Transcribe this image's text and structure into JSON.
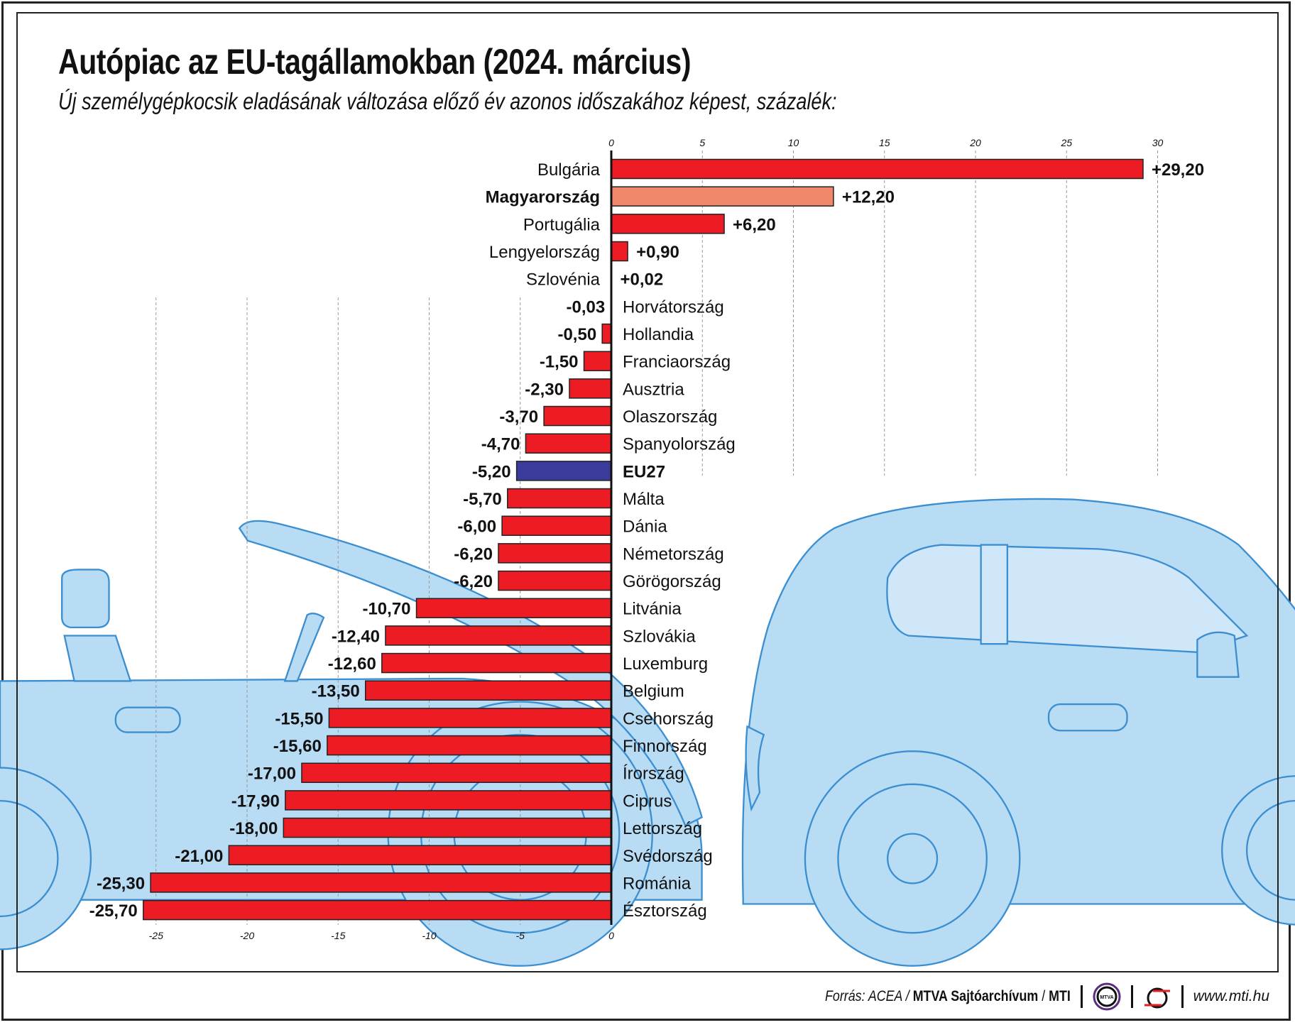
{
  "title": "Autópiac az EU-tagállamokban (2024. március)",
  "subtitle": "Új személygépkocsik eladásának változása előző év azonos időszakához képest, százalék:",
  "footer": {
    "source_prefix": "Forrás: ACEA / ",
    "source_bold": "MTVA Sajtóarchívum",
    "source_sep": " / ",
    "source_mti": "MTI",
    "mtva_logo_text": "MTVA",
    "website": "www.mti.hu"
  },
  "colors": {
    "bar": "#ed1c24",
    "hungary": "#f0896b",
    "eu": "#3b3b9b",
    "car_fill": "#b9dcf5",
    "car_stroke": "#3b8fd1"
  },
  "chart_data": {
    "type": "bar",
    "orientation": "horizontal",
    "title": "Autópiac az EU-tagállamokban (2024. március)",
    "xlabel": "",
    "ylabel": "",
    "xlim": [
      -27,
      32
    ],
    "top_ticks": [
      "0",
      "5",
      "10",
      "15",
      "20",
      "25",
      "30"
    ],
    "top_tick_values": [
      0,
      5,
      10,
      15,
      20,
      25,
      30
    ],
    "bottom_ticks": [
      "-25",
      "-20",
      "-15",
      "-10",
      "-5",
      "0"
    ],
    "bottom_tick_values": [
      -25,
      -20,
      -15,
      -10,
      -5,
      0
    ],
    "grid": true,
    "categories": [
      "Bulgária",
      "Magyarország",
      "Portugália",
      "Lengyelország",
      "Szlovénia",
      "Horvátország",
      "Hollandia",
      "Franciaország",
      "Ausztria",
      "Olaszország",
      "Spanyolország",
      "EU27",
      "Málta",
      "Dánia",
      "Németország",
      "Görögország",
      "Litvánia",
      "Szlovákia",
      "Luxemburg",
      "Belgium",
      "Csehország",
      "Finnország",
      "Írország",
      "Ciprus",
      "Lettország",
      "Svédország",
      "Románia",
      "Észtország"
    ],
    "values": [
      29.2,
      12.2,
      6.2,
      0.9,
      0.02,
      -0.03,
      -0.5,
      -1.5,
      -2.3,
      -3.7,
      -4.7,
      -5.2,
      -5.7,
      -6.0,
      -6.2,
      -6.2,
      -10.7,
      -12.4,
      -12.6,
      -13.5,
      -15.5,
      -15.6,
      -17.0,
      -17.9,
      -18.0,
      -21.0,
      -25.3,
      -25.7
    ],
    "labels": [
      "+29,20",
      "+12,20",
      "+6,20",
      "+0,90",
      "+0,02",
      "-0,03",
      "-0,50",
      "-1,50",
      "-2,30",
      "-3,70",
      "-4,70",
      "-5,20",
      "-5,70",
      "-6,00",
      "-6,20",
      "-6,20",
      "-10,70",
      "-12,40",
      "-12,60",
      "-13,50",
      "-15,50",
      "-15,60",
      "-17,00",
      "-17,90",
      "-18,00",
      "-21,00",
      "-25,30",
      "-25,70"
    ],
    "highlight": {
      "Magyarország": "hungary",
      "EU27": "eu"
    }
  }
}
